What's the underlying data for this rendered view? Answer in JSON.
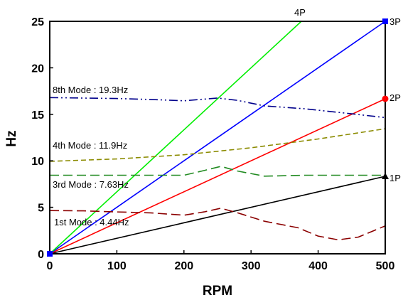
{
  "chart_data": {
    "type": "line",
    "xlabel": "RPM",
    "ylabel": "Hz",
    "xlim": [
      0,
      500
    ],
    "ylim": [
      0,
      25
    ],
    "xticks": [
      "0",
      "100",
      "200",
      "300",
      "400",
      "500"
    ],
    "yticks": [
      "0",
      "5",
      "10",
      "15",
      "20",
      "25"
    ],
    "grid": false,
    "legend": "none",
    "series": [
      {
        "name": "1P",
        "color": "#000000",
        "style": "solid",
        "marker": "triangle",
        "points": [
          [
            0,
            0
          ],
          [
            500,
            8.33
          ]
        ]
      },
      {
        "name": "2P",
        "color": "#ff0000",
        "style": "solid",
        "marker": "circle",
        "points": [
          [
            0,
            0
          ],
          [
            500,
            16.67
          ]
        ]
      },
      {
        "name": "3P",
        "color": "#0000ff",
        "style": "solid",
        "marker": "square",
        "points": [
          [
            0,
            0
          ],
          [
            500,
            25
          ]
        ]
      },
      {
        "name": "4P",
        "color": "#00ee00",
        "style": "solid",
        "marker": "none",
        "points": [
          [
            0,
            0
          ],
          [
            375,
            25
          ]
        ]
      },
      {
        "name": "1st Mode : 4.44Hz",
        "color": "#8b0000",
        "style": "dashed-long",
        "points": [
          [
            0,
            4.65
          ],
          [
            50,
            4.62
          ],
          [
            100,
            4.5
          ],
          [
            150,
            4.4
          ],
          [
            200,
            4.15
          ],
          [
            230,
            4.5
          ],
          [
            255,
            4.9
          ],
          [
            280,
            4.4
          ],
          [
            320,
            3.5
          ],
          [
            370,
            2.8
          ],
          [
            400,
            1.9
          ],
          [
            430,
            1.5
          ],
          [
            460,
            1.8
          ],
          [
            490,
            2.7
          ],
          [
            500,
            3.0
          ]
        ]
      },
      {
        "name": "3rd Mode : 7.63Hz",
        "color": "#228b22",
        "style": "dashed-long",
        "points": [
          [
            0,
            8.45
          ],
          [
            100,
            8.45
          ],
          [
            150,
            8.45
          ],
          [
            200,
            8.45
          ],
          [
            230,
            8.95
          ],
          [
            255,
            9.4
          ],
          [
            280,
            8.9
          ],
          [
            320,
            8.35
          ],
          [
            380,
            8.45
          ],
          [
            450,
            8.45
          ],
          [
            500,
            8.45
          ]
        ]
      },
      {
        "name": "4th Mode : 11.9Hz",
        "color": "#8b8b00",
        "style": "dashed",
        "points": [
          [
            0,
            9.95
          ],
          [
            100,
            10.2
          ],
          [
            200,
            10.65
          ],
          [
            300,
            11.4
          ],
          [
            400,
            12.35
          ],
          [
            500,
            13.45
          ]
        ]
      },
      {
        "name": "8th Mode : 19.3Hz",
        "color": "#00008b",
        "style": "dash-dot-dot",
        "points": [
          [
            0,
            16.8
          ],
          [
            100,
            16.7
          ],
          [
            150,
            16.6
          ],
          [
            200,
            16.45
          ],
          [
            250,
            16.75
          ],
          [
            280,
            16.5
          ],
          [
            320,
            15.9
          ],
          [
            380,
            15.6
          ],
          [
            450,
            15.05
          ],
          [
            500,
            14.65
          ]
        ]
      }
    ],
    "annotations": {
      "p1": "1P",
      "p2": "2P",
      "p3": "3P",
      "p4": "4P",
      "mode1": "1st Mode : 4.44Hz",
      "mode3": "3rd Mode : 7.63Hz",
      "mode4": "4th Mode : 11.9Hz",
      "mode8": "8th Mode : 19.3Hz"
    }
  }
}
